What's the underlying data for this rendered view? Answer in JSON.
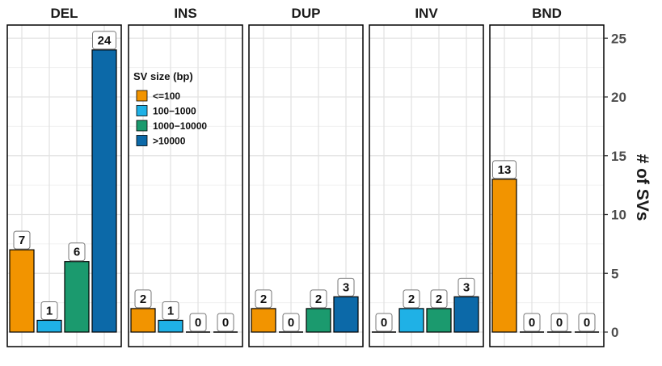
{
  "chart_data": {
    "type": "bar",
    "categories": [
      "DEL",
      "INS",
      "DUP",
      "INV",
      "BND"
    ],
    "ylabel": "# of SVs",
    "ylim": [
      0,
      26
    ],
    "yticks": [
      0,
      5,
      10,
      15,
      20,
      25
    ],
    "ytick_labels": [
      "0",
      "5",
      "10",
      "15",
      "20",
      "25"
    ],
    "grid": true,
    "legend": {
      "title": "SV size (bp)",
      "placement": "inside top-left of INS panel"
    },
    "series": [
      {
        "name": "<=100",
        "color": "#F29400",
        "values": [
          7,
          2,
          2,
          0,
          13
        ]
      },
      {
        "name": "100−1000",
        "color": "#1FB1E6",
        "values": [
          1,
          1,
          0,
          2,
          0
        ]
      },
      {
        "name": "1000−10000",
        "color": "#1B9A6E",
        "values": [
          6,
          0,
          2,
          2,
          0
        ]
      },
      {
        "name": ">10000",
        "color": "#0C69A8",
        "values": [
          24,
          0,
          3,
          3,
          0
        ]
      }
    ]
  }
}
